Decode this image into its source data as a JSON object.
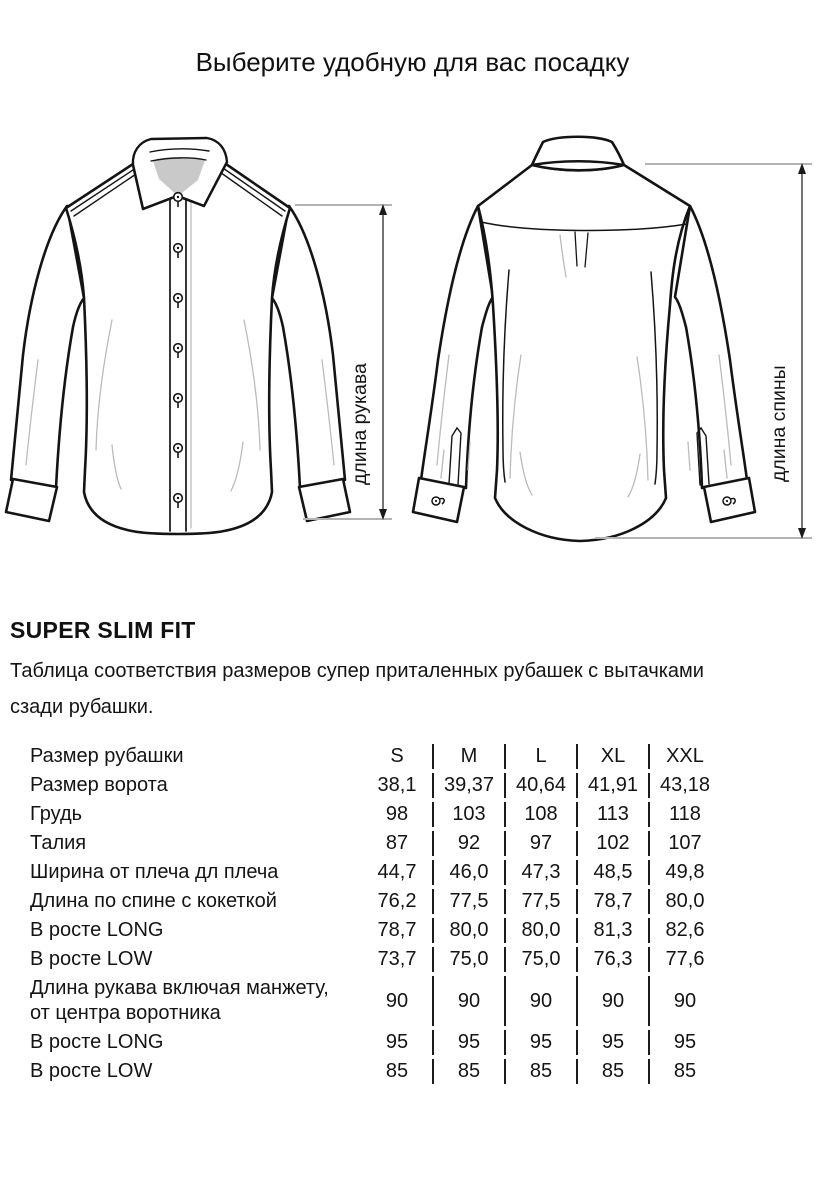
{
  "page": {
    "title": "Выберите удобную для вас посадку"
  },
  "diagram": {
    "front_measure_label": "длина рукава",
    "back_measure_label": "длина спины"
  },
  "section": {
    "heading": "SUPER SLIM FIT",
    "description": "Таблица соответствия размеров супер приталенных рубашек с вытачками\nсзади рубашки."
  },
  "size_table": {
    "header": {
      "label": "Размер рубашки",
      "sizes": [
        "S",
        "M",
        "L",
        "XL",
        "XXL"
      ]
    },
    "rows": [
      {
        "label": "Размер ворота",
        "values": [
          "38,1",
          "39,37",
          "40,64",
          "41,91",
          "43,18"
        ]
      },
      {
        "label": "Грудь",
        "values": [
          "98",
          "103",
          "108",
          "113",
          "118"
        ]
      },
      {
        "label": "Талия",
        "values": [
          "87",
          "92",
          "97",
          "102",
          "107"
        ]
      },
      {
        "label": "Ширина от плеча дл плеча",
        "values": [
          "44,7",
          "46,0",
          "47,3",
          "48,5",
          "49,8"
        ]
      },
      {
        "label": "Длина по спине с кокеткой",
        "values": [
          "76,2",
          "77,5",
          "77,5",
          "78,7",
          "80,0"
        ]
      },
      {
        "label": "В росте LONG",
        "values": [
          "78,7",
          "80,0",
          "80,0",
          "81,3",
          "82,6"
        ]
      },
      {
        "label": "В росте LOW",
        "values": [
          "73,7",
          "75,0",
          "75,0",
          "76,3",
          "77,6"
        ]
      },
      {
        "label": "Длина рукава включая манжету,\nот центра воротника",
        "values": [
          "90",
          "90",
          "90",
          "90",
          "90"
        ]
      },
      {
        "label": "В росте LONG",
        "values": [
          "95",
          "95",
          "95",
          "95",
          "95"
        ]
      },
      {
        "label": "В росте LOW",
        "values": [
          "85",
          "85",
          "85",
          "85",
          "85"
        ]
      }
    ]
  },
  "colors": {
    "text": "#141414",
    "line": "#141414",
    "collar_inner": "#c9c9c9",
    "dimension_gray": "#b3b3b3"
  }
}
